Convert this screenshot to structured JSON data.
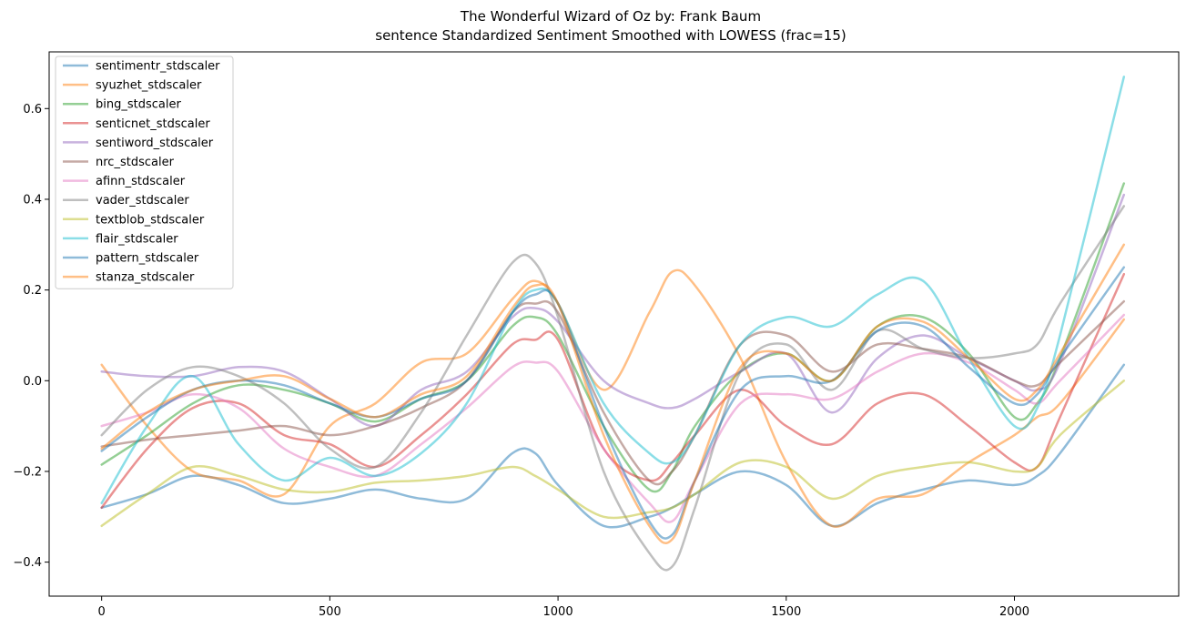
{
  "chart_data": {
    "type": "line",
    "title": "The Wonderful Wizard of Oz by: Frank Baum",
    "subtitle": "sentence Standardized Sentiment Smoothed with LOWESS (frac=15)",
    "xlabel": "",
    "ylabel": "",
    "xlim": [
      -115,
      2360
    ],
    "ylim": [
      -0.475,
      0.725
    ],
    "xticks": [
      0,
      500,
      1000,
      1500,
      2000
    ],
    "yticks": [
      -0.4,
      -0.2,
      0.0,
      0.2,
      0.4,
      0.6
    ],
    "ytick_labels": [
      "−0.4",
      "−0.2",
      "0.0",
      "0.2",
      "0.4",
      "0.6"
    ],
    "grid": false,
    "legend_position": "top-left",
    "x": [
      0,
      100,
      200,
      300,
      400,
      500,
      600,
      700,
      800,
      900,
      950,
      1000,
      1100,
      1200,
      1250,
      1300,
      1400,
      1500,
      1600,
      1700,
      1800,
      1900,
      2000,
      2050,
      2100,
      2240
    ],
    "series": [
      {
        "name": "sentimentr_stdscaler",
        "color": "#1f77b4",
        "values": [
          -0.28,
          -0.25,
          -0.21,
          -0.23,
          -0.27,
          -0.26,
          -0.24,
          -0.26,
          -0.26,
          -0.16,
          -0.16,
          -0.23,
          -0.32,
          -0.3,
          -0.28,
          -0.25,
          -0.2,
          -0.23,
          -0.32,
          -0.27,
          -0.24,
          -0.22,
          -0.23,
          -0.21,
          -0.16,
          0.035
        ]
      },
      {
        "name": "syuzhet_stdscaler",
        "color": "#ff7f0e",
        "values": [
          0.035,
          -0.1,
          -0.2,
          -0.22,
          -0.25,
          -0.1,
          -0.05,
          0.04,
          0.06,
          0.18,
          0.22,
          0.17,
          -0.02,
          0.15,
          0.24,
          0.21,
          0.05,
          -0.18,
          -0.32,
          -0.26,
          -0.25,
          -0.18,
          -0.12,
          -0.08,
          -0.05,
          0.135
        ]
      },
      {
        "name": "bing_stdscaler",
        "color": "#2ca02c",
        "values": [
          -0.185,
          -0.12,
          -0.05,
          -0.01,
          -0.02,
          -0.05,
          -0.09,
          -0.04,
          0.0,
          0.12,
          0.14,
          0.1,
          -0.1,
          -0.24,
          -0.2,
          -0.1,
          0.02,
          0.06,
          0.0,
          0.12,
          0.14,
          0.06,
          -0.08,
          -0.05,
          0.05,
          0.435
        ]
      },
      {
        "name": "senticnet_stdscaler",
        "color": "#d62728",
        "values": [
          -0.28,
          -0.15,
          -0.06,
          -0.05,
          -0.12,
          -0.14,
          -0.19,
          -0.12,
          -0.03,
          0.08,
          0.09,
          0.09,
          -0.15,
          -0.22,
          -0.18,
          -0.12,
          -0.02,
          -0.1,
          -0.14,
          -0.05,
          -0.03,
          -0.1,
          -0.18,
          -0.19,
          -0.08,
          0.235
        ]
      },
      {
        "name": "sentiword_stdscaler",
        "color": "#9467bd",
        "values": [
          0.02,
          0.01,
          0.01,
          0.03,
          0.02,
          -0.04,
          -0.1,
          -0.02,
          0.02,
          0.14,
          0.16,
          0.13,
          0.0,
          -0.05,
          -0.06,
          -0.04,
          0.02,
          0.06,
          -0.07,
          0.05,
          0.1,
          0.05,
          0.0,
          -0.02,
          0.04,
          0.41
        ]
      },
      {
        "name": "nrc_stdscaler",
        "color": "#8c564b",
        "values": [
          -0.145,
          -0.13,
          -0.12,
          -0.11,
          -0.1,
          -0.12,
          -0.1,
          -0.06,
          0.0,
          0.15,
          0.17,
          0.15,
          -0.07,
          -0.22,
          -0.2,
          -0.12,
          0.08,
          0.1,
          0.02,
          0.08,
          0.07,
          0.05,
          0.0,
          -0.01,
          0.04,
          0.175
        ]
      },
      {
        "name": "afinn_stdscaler",
        "color": "#e377c2",
        "values": [
          -0.1,
          -0.07,
          -0.03,
          -0.06,
          -0.15,
          -0.19,
          -0.21,
          -0.14,
          -0.06,
          0.03,
          0.04,
          0.02,
          -0.15,
          -0.27,
          -0.31,
          -0.22,
          -0.05,
          -0.03,
          -0.04,
          0.02,
          0.06,
          0.04,
          -0.02,
          -0.05,
          0.0,
          0.145
        ]
      },
      {
        "name": "vader_stdscaler",
        "color": "#7f7f7f",
        "values": [
          -0.12,
          -0.02,
          0.03,
          0.01,
          -0.05,
          -0.15,
          -0.19,
          -0.07,
          0.1,
          0.26,
          0.26,
          0.14,
          -0.2,
          -0.38,
          -0.41,
          -0.28,
          0.02,
          0.08,
          -0.02,
          0.11,
          0.07,
          0.05,
          0.06,
          0.08,
          0.17,
          0.385
        ]
      },
      {
        "name": "textblob_stdscaler",
        "color": "#bcbd22",
        "values": [
          -0.32,
          -0.25,
          -0.19,
          -0.21,
          -0.24,
          -0.245,
          -0.225,
          -0.22,
          -0.21,
          -0.19,
          -0.21,
          -0.24,
          -0.3,
          -0.29,
          -0.28,
          -0.25,
          -0.18,
          -0.19,
          -0.26,
          -0.21,
          -0.19,
          -0.18,
          -0.2,
          -0.19,
          -0.12,
          0.0
        ]
      },
      {
        "name": "flair_stdscaler",
        "color": "#17becf",
        "values": [
          -0.27,
          -0.1,
          0.01,
          -0.14,
          -0.22,
          -0.17,
          -0.21,
          -0.16,
          -0.05,
          0.15,
          0.2,
          0.17,
          -0.05,
          -0.16,
          -0.18,
          -0.12,
          0.08,
          0.14,
          0.12,
          0.19,
          0.22,
          0.05,
          -0.1,
          -0.06,
          0.1,
          0.67
        ]
      },
      {
        "name": "pattern_stdscaler",
        "color": "#1f77b4",
        "values": [
          -0.155,
          -0.08,
          -0.02,
          0.0,
          -0.01,
          -0.05,
          -0.08,
          -0.04,
          0.0,
          0.15,
          0.19,
          0.17,
          -0.1,
          -0.31,
          -0.34,
          -0.22,
          -0.02,
          0.01,
          0.0,
          0.11,
          0.12,
          0.03,
          -0.05,
          -0.03,
          0.05,
          0.25
        ]
      },
      {
        "name": "stanza_stdscaler",
        "color": "#ff7f0e",
        "values": [
          -0.15,
          -0.07,
          -0.02,
          0.0,
          0.01,
          -0.04,
          -0.08,
          -0.03,
          0.01,
          0.16,
          0.21,
          0.17,
          -0.12,
          -0.32,
          -0.35,
          -0.22,
          0.03,
          0.06,
          0.0,
          0.12,
          0.13,
          0.05,
          -0.04,
          -0.02,
          0.06,
          0.3
        ]
      }
    ]
  }
}
